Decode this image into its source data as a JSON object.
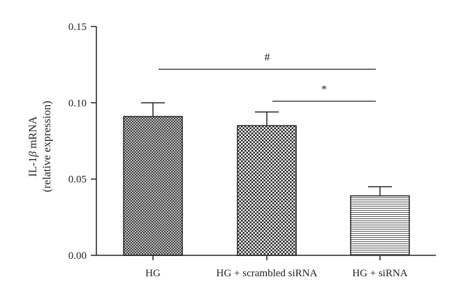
{
  "chart_data": {
    "type": "bar",
    "title": "",
    "xlabel": "",
    "ylabel_line1_prefix": "IL-1",
    "ylabel_line1_greek": "β",
    "ylabel_line1_suffix": " mRNA",
    "ylabel_line2": "(relative expression)",
    "ylim": [
      0,
      0.15
    ],
    "yticks": [
      0.0,
      0.05,
      0.1,
      0.15
    ],
    "ytick_labels": [
      "0.00",
      "0.05",
      "0.10",
      "0.15"
    ],
    "categories": [
      "HG",
      "HG + scrambled siRNA",
      "HG + siRNA"
    ],
    "values": [
      0.091,
      0.085,
      0.039
    ],
    "errors": [
      0.009,
      0.009,
      0.006
    ],
    "patterns": [
      "dense-crosshatch",
      "checker",
      "horizontal-lines"
    ],
    "grid": false,
    "annotations": [
      {
        "label": "#",
        "from": 0,
        "to": 2,
        "y": 0.122
      },
      {
        "label": "*",
        "from": 1,
        "to": 2,
        "y": 0.101
      }
    ],
    "colors": {
      "axis": "#222222",
      "bar_fill": "#3a3a3a",
      "background": "#ffffff"
    }
  }
}
